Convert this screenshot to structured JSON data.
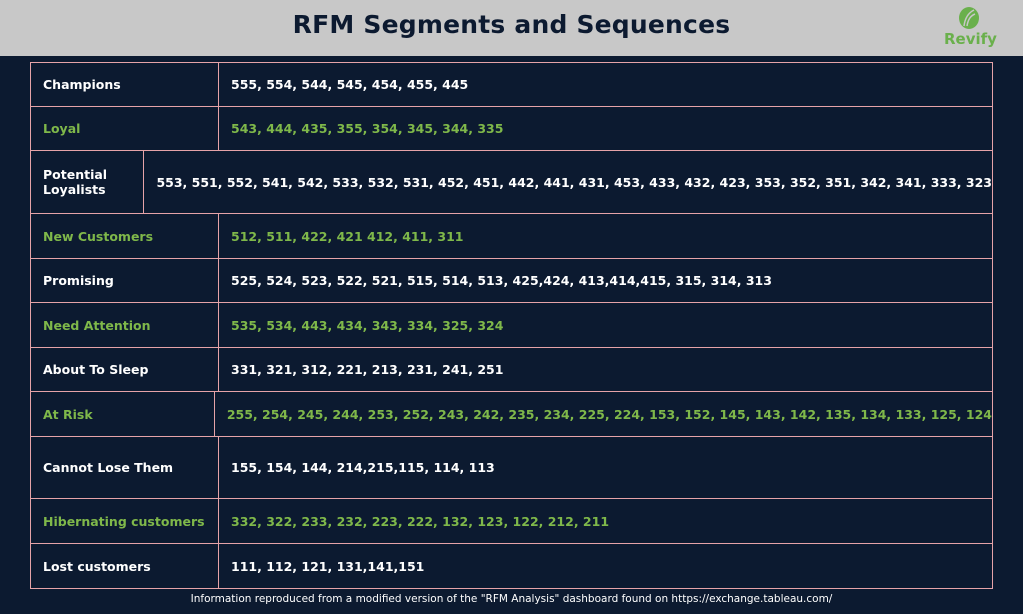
{
  "header": {
    "title": "RFM Segments and Sequences",
    "logo_text": "Revify",
    "brand_color": "#6ab04c"
  },
  "colors": {
    "background": "#0c1a30",
    "header": "#c8c8c8",
    "border": "#e6a3a8",
    "green_text": "#7fb84a"
  },
  "segments": [
    {
      "name": "Champions",
      "codes": "555, 554, 544, 545, 454, 455, 445",
      "style": "white"
    },
    {
      "name": "Loyal",
      "codes": "543, 444, 435, 355, 354, 345, 344, 335",
      "style": "green"
    },
    {
      "name": "Potential Loyalists",
      "codes": "553, 551, 552, 541, 542, 533, 532, 531, 452, 451, 442, 441, 431, 453, 433, 432, 423, 353, 352, 351, 342, 341, 333, 323",
      "style": "white"
    },
    {
      "name": "New Customers",
      "codes": "512, 511, 422, 421 412, 411, 311",
      "style": "green"
    },
    {
      "name": "Promising",
      "codes": "525, 524, 523, 522, 521, 515, 514, 513, 425,424, 413,414,415, 315, 314, 313",
      "style": "white"
    },
    {
      "name": "Need Attention",
      "codes": "535, 534, 443, 434, 343, 334, 325, 324",
      "style": "green"
    },
    {
      "name": "About To Sleep",
      "codes": "331, 321, 312, 221, 213, 231, 241, 251",
      "style": "white"
    },
    {
      "name": "At Risk",
      "codes": "255, 254, 245, 244, 253, 252, 243, 242, 235, 234, 225, 224, 153, 152, 145, 143, 142, 135, 134, 133, 125, 124",
      "style": "green"
    },
    {
      "name": "Cannot Lose Them",
      "codes": "155, 154, 144, 214,215,115, 114, 113",
      "style": "white"
    },
    {
      "name": "Hibernating customers",
      "codes": "332, 322, 233, 232, 223, 222, 132, 123, 122, 212, 211",
      "style": "green"
    },
    {
      "name": "Lost customers",
      "codes": "111, 112, 121, 131,141,151",
      "style": "white"
    }
  ],
  "footer": {
    "text": "Information reproduced from a modified version of the \"RFM Analysis\" dashboard found on https://exchange.tableau.com/"
  }
}
